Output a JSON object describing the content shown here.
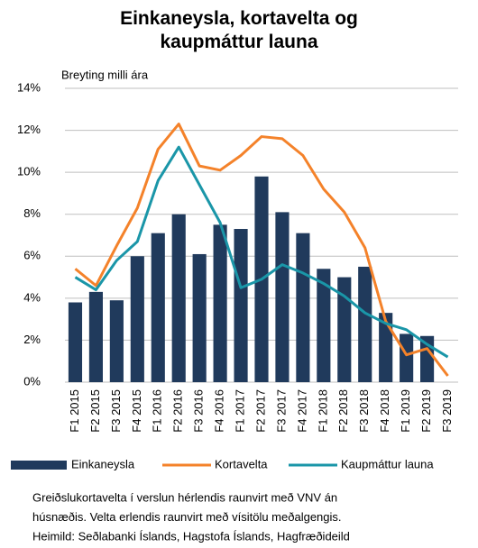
{
  "chart_data": {
    "type": "bar-line",
    "title": "Einkaneysla, kortavelta og kaupmáttur launa",
    "y_label": "Breyting milli ára",
    "categories": [
      "F1 2015",
      "F2 2015",
      "F3 2015",
      "F4 2015",
      "F1 2016",
      "F2 2016",
      "F3 2016",
      "F4 2016",
      "F1 2017",
      "F2 2017",
      "F3 2017",
      "F4 2017",
      "F1 2018",
      "F2 2018",
      "F3 2018",
      "F4 2018",
      "F1 2019",
      "F2 2019",
      "F3 2019"
    ],
    "series": [
      {
        "name": "Einkaneysla",
        "type": "bar",
        "color": "#203a5c",
        "values": [
          3.8,
          4.3,
          3.9,
          6.0,
          7.1,
          8.0,
          6.1,
          7.5,
          7.3,
          9.8,
          8.1,
          7.1,
          5.4,
          5.0,
          5.5,
          3.3,
          2.3,
          2.2,
          null
        ]
      },
      {
        "name": "Kortavelta",
        "type": "line",
        "color": "#f4822a",
        "values": [
          5.4,
          4.6,
          6.5,
          8.3,
          11.1,
          12.3,
          10.3,
          10.1,
          10.8,
          11.7,
          11.6,
          10.8,
          9.2,
          8.1,
          6.4,
          2.9,
          1.3,
          1.6,
          0.3
        ]
      },
      {
        "name": "Kaupmáttur launa",
        "type": "line",
        "color": "#1a96a8",
        "values": [
          5.0,
          4.4,
          5.8,
          6.7,
          9.6,
          11.2,
          9.4,
          7.6,
          4.5,
          4.9,
          5.6,
          5.2,
          4.7,
          4.1,
          3.3,
          2.8,
          2.5,
          1.8,
          1.2
        ]
      }
    ],
    "ylim": [
      0,
      14
    ],
    "yticks": [
      {
        "value": 0,
        "label": "0%"
      },
      {
        "value": 2,
        "label": "2%"
      },
      {
        "value": 4,
        "label": "4%"
      },
      {
        "value": 6,
        "label": "6%"
      },
      {
        "value": 8,
        "label": "8%"
      },
      {
        "value": 10,
        "label": "10%"
      },
      {
        "value": 12,
        "label": "12%"
      },
      {
        "value": 14,
        "label": "14%"
      }
    ],
    "grid": true,
    "notes": [
      "Greiðslukortavelta í verslun hérlendis raunvirt með VNV án",
      "húsnæðis. Velta erlendis raunvirt með vísitölu meðalgengis.",
      "Heimild: Seðlabanki Íslands, Hagstofa Íslands, Hagfræðideild"
    ]
  }
}
